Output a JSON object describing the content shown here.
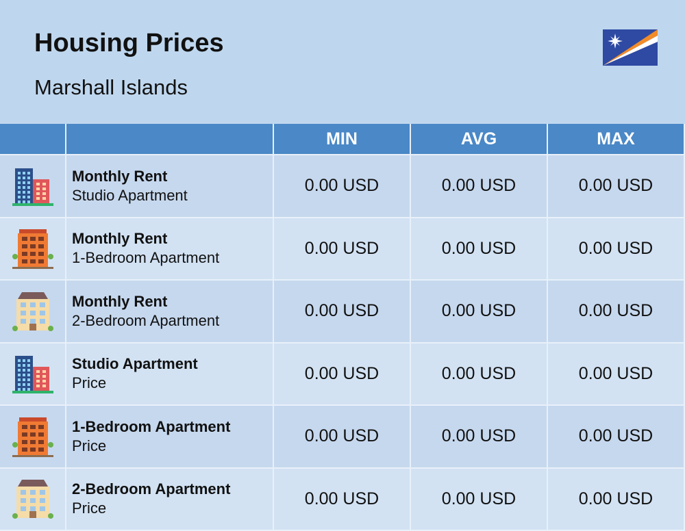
{
  "header": {
    "title": "Housing Prices",
    "subtitle": "Marshall Islands"
  },
  "table": {
    "columns": [
      "MIN",
      "AVG",
      "MAX"
    ],
    "rows": [
      {
        "title": "Monthly Rent",
        "subtitle": "Studio Apartment",
        "values": [
          "0.00 USD",
          "0.00 USD",
          "0.00 USD"
        ]
      },
      {
        "title": "Monthly Rent",
        "subtitle": "1-Bedroom Apartment",
        "values": [
          "0.00 USD",
          "0.00 USD",
          "0.00 USD"
        ]
      },
      {
        "title": "Monthly Rent",
        "subtitle": "2-Bedroom Apartment",
        "values": [
          "0.00 USD",
          "0.00 USD",
          "0.00 USD"
        ]
      },
      {
        "title": "Studio Apartment",
        "subtitle": "Price",
        "values": [
          "0.00 USD",
          "0.00 USD",
          "0.00 USD"
        ]
      },
      {
        "title": "1-Bedroom Apartment",
        "subtitle": "Price",
        "values": [
          "0.00 USD",
          "0.00 USD",
          "0.00 USD"
        ]
      },
      {
        "title": "2-Bedroom Apartment",
        "subtitle": "Price",
        "values": [
          "0.00 USD",
          "0.00 USD",
          "0.00 USD"
        ]
      }
    ]
  }
}
